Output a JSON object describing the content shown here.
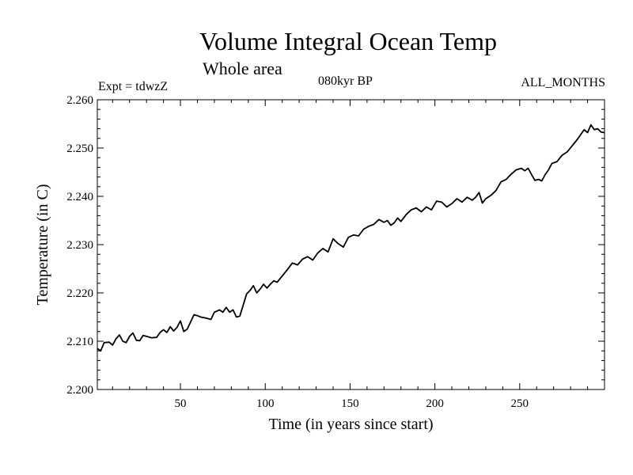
{
  "header": {
    "title": "Volume Integral Ocean Temp",
    "subtitle": "Whole area",
    "expt": "Expt = tdwzZ",
    "period": "080kyr BP",
    "months": "ALL_MONTHS"
  },
  "chart_data": {
    "type": "line",
    "title": "Volume Integral Ocean Temp",
    "subtitle": "Whole area",
    "xlabel": "Time (in years since start)",
    "ylabel": "Temperature (in C)",
    "xlim": [
      1,
      300
    ],
    "ylim": [
      2.2,
      2.26
    ],
    "xticks": [
      50,
      100,
      150,
      200,
      250
    ],
    "yticks": [
      "2.200",
      "2.210",
      "2.220",
      "2.230",
      "2.240",
      "2.250",
      "2.260"
    ],
    "grid": false,
    "series": [
      {
        "color": "#000000",
        "x": [
          1,
          3,
          5,
          8,
          10,
          12,
          14,
          16,
          18,
          20,
          22,
          24,
          26,
          28,
          30,
          33,
          36,
          38,
          40,
          42,
          44,
          46,
          48,
          50,
          52,
          54,
          56,
          58,
          60,
          62,
          65,
          68,
          70,
          73,
          75,
          77,
          79,
          81,
          83,
          85,
          87,
          89,
          91,
          93,
          95,
          97,
          99,
          101,
          103,
          105,
          107,
          110,
          113,
          116,
          119,
          122,
          125,
          128,
          131,
          134,
          137,
          140,
          143,
          146,
          149,
          152,
          155,
          158,
          161,
          164,
          167,
          170,
          172,
          174,
          176,
          178,
          180,
          183,
          186,
          189,
          192,
          195,
          198,
          201,
          204,
          207,
          210,
          213,
          216,
          219,
          222,
          224,
          226,
          228,
          230,
          233,
          236,
          239,
          242,
          245,
          248,
          251,
          253,
          255,
          257,
          259,
          261,
          263,
          265,
          267,
          269,
          272,
          275,
          278,
          281,
          284,
          286,
          288,
          290,
          292,
          294,
          296,
          298,
          300
        ],
        "values": [
          2.2085,
          2.208,
          2.2097,
          2.2098,
          2.2092,
          2.2105,
          2.2113,
          2.21,
          2.2097,
          2.211,
          2.2117,
          2.2102,
          2.2101,
          2.2112,
          2.211,
          2.2107,
          2.2108,
          2.2118,
          2.2124,
          2.2118,
          2.213,
          2.2121,
          2.2129,
          2.2142,
          2.212,
          2.2125,
          2.214,
          2.2155,
          2.2153,
          2.215,
          2.2148,
          2.2145,
          2.216,
          2.2165,
          2.216,
          2.217,
          2.216,
          2.2165,
          2.215,
          2.2152,
          2.2175,
          2.2198,
          2.2205,
          2.2215,
          2.22,
          2.2208,
          2.2218,
          2.221,
          2.2218,
          2.2225,
          2.2222,
          2.2235,
          2.2248,
          2.2262,
          2.2258,
          2.227,
          2.2275,
          2.2268,
          2.2283,
          2.2292,
          2.2285,
          2.2312,
          2.2302,
          2.2295,
          2.2315,
          2.232,
          2.2318,
          2.2332,
          2.2338,
          2.2342,
          2.2352,
          2.2346,
          2.235,
          2.234,
          2.2345,
          2.2355,
          2.2348,
          2.2362,
          2.2372,
          2.2376,
          2.2368,
          2.2378,
          2.2372,
          2.239,
          2.2388,
          2.2378,
          2.2385,
          2.2395,
          2.2388,
          2.2398,
          2.2392,
          2.2398,
          2.2408,
          2.2386,
          2.2395,
          2.2402,
          2.2412,
          2.243,
          2.2435,
          2.2446,
          2.2455,
          2.2458,
          2.2453,
          2.2458,
          2.2445,
          2.2433,
          2.2435,
          2.2432,
          2.2445,
          2.2455,
          2.2468,
          2.2472,
          2.2485,
          2.2492,
          2.2505,
          2.2518,
          2.2528,
          2.2538,
          2.2532,
          2.2548,
          2.2538,
          2.254,
          2.2533,
          2.2532
        ]
      }
    ]
  }
}
